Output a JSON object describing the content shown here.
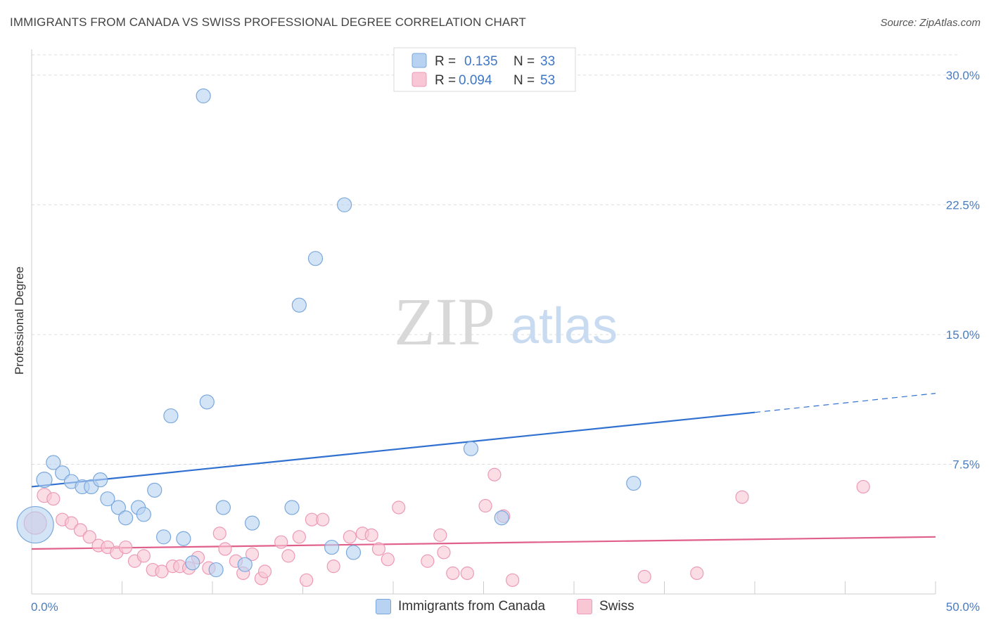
{
  "title": "IMMIGRANTS FROM CANADA VS SWISS PROFESSIONAL DEGREE CORRELATION CHART",
  "source": "Source: ZipAtlas.com",
  "watermark": {
    "zip": "ZIP",
    "atlas": "atlas"
  },
  "colors": {
    "canada_fill": "#b8d2f2",
    "canada_stroke": "#7aa8dc",
    "canada_line": "#2f70d0",
    "swiss_fill": "#f9c6d6",
    "swiss_stroke": "#ec9ab6",
    "swiss_line": "#e0608a",
    "tick_text": "#4a7cc0"
  },
  "legend": {
    "rows": [
      {
        "r_label": "R =",
        "r_value": "0.135",
        "n_label": "N =",
        "n_value": "33"
      },
      {
        "r_label": "R =",
        "r_value": "0.094",
        "n_label": "N =",
        "n_value": "53"
      }
    ]
  },
  "bottom_legend": [
    "Immigrants from Canada",
    "Swiss"
  ],
  "chart_data": {
    "type": "scatter",
    "ylabel": "Professional Degree",
    "xlim": [
      0,
      50
    ],
    "ylim": [
      0,
      31.5
    ],
    "x_tick_labels": [
      "0.0%",
      "50.0%"
    ],
    "y_ticks": [
      7.5,
      15.0,
      22.5,
      30.0
    ],
    "y_tick_labels": [
      "7.5%",
      "15.0%",
      "22.5%",
      "30.0%"
    ],
    "grid": "horizontal-dashed",
    "series": [
      {
        "name": "Immigrants from Canada",
        "trend": {
          "x0": 0,
          "y0": 6.2,
          "x1": 40,
          "y1": 10.5,
          "x_dash_end": 50,
          "y_dash_end": 11.6
        },
        "points": [
          [
            0.2,
            4.0,
            26
          ],
          [
            0.7,
            6.6,
            11
          ],
          [
            1.2,
            7.6,
            10
          ],
          [
            1.7,
            7.0,
            10
          ],
          [
            2.2,
            6.5,
            10
          ],
          [
            2.8,
            6.2,
            10
          ],
          [
            3.3,
            6.2,
            10
          ],
          [
            3.8,
            6.6,
            10
          ],
          [
            4.2,
            5.5,
            10
          ],
          [
            4.8,
            5.0,
            10
          ],
          [
            5.2,
            4.4,
            10
          ],
          [
            5.9,
            5.0,
            10
          ],
          [
            6.2,
            4.6,
            10
          ],
          [
            6.8,
            6.0,
            10
          ],
          [
            7.3,
            3.3,
            10
          ],
          [
            7.7,
            10.3,
            10
          ],
          [
            8.4,
            3.2,
            10
          ],
          [
            8.9,
            1.8,
            10
          ],
          [
            9.5,
            28.8,
            10
          ],
          [
            9.7,
            11.1,
            10
          ],
          [
            10.2,
            1.4,
            10
          ],
          [
            10.6,
            5.0,
            10
          ],
          [
            11.8,
            1.7,
            10
          ],
          [
            12.2,
            4.1,
            10
          ],
          [
            14.4,
            5.0,
            10
          ],
          [
            14.8,
            16.7,
            10
          ],
          [
            15.7,
            19.4,
            10
          ],
          [
            16.6,
            2.7,
            10
          ],
          [
            17.3,
            22.5,
            10
          ],
          [
            17.8,
            2.4,
            10
          ],
          [
            24.3,
            8.4,
            10
          ],
          [
            26.0,
            4.4,
            10
          ],
          [
            33.3,
            6.4,
            10
          ]
        ]
      },
      {
        "name": "Swiss",
        "trend": {
          "x0": 0,
          "y0": 2.6,
          "x1": 50,
          "y1": 3.3
        },
        "points": [
          [
            0.2,
            4.1,
            16
          ],
          [
            0.7,
            5.7,
            10
          ],
          [
            1.2,
            5.5,
            9
          ],
          [
            1.7,
            4.3,
            9
          ],
          [
            2.2,
            4.1,
            9
          ],
          [
            2.7,
            3.7,
            9
          ],
          [
            3.2,
            3.3,
            9
          ],
          [
            3.7,
            2.8,
            9
          ],
          [
            4.2,
            2.7,
            9
          ],
          [
            4.7,
            2.4,
            9
          ],
          [
            5.2,
            2.7,
            9
          ],
          [
            5.7,
            1.9,
            9
          ],
          [
            6.2,
            2.2,
            9
          ],
          [
            6.7,
            1.4,
            9
          ],
          [
            7.2,
            1.3,
            9
          ],
          [
            7.8,
            1.6,
            9
          ],
          [
            8.2,
            1.6,
            9
          ],
          [
            8.7,
            1.5,
            9
          ],
          [
            9.2,
            2.1,
            9
          ],
          [
            9.8,
            1.5,
            9
          ],
          [
            10.4,
            3.5,
            9
          ],
          [
            10.7,
            2.6,
            9
          ],
          [
            11.3,
            1.9,
            9
          ],
          [
            11.7,
            1.2,
            9
          ],
          [
            12.2,
            2.3,
            9
          ],
          [
            12.7,
            0.9,
            9
          ],
          [
            12.9,
            1.3,
            9
          ],
          [
            13.8,
            3.0,
            9
          ],
          [
            14.2,
            2.2,
            9
          ],
          [
            14.8,
            3.3,
            9
          ],
          [
            15.2,
            0.8,
            9
          ],
          [
            15.5,
            4.3,
            9
          ],
          [
            16.1,
            4.3,
            9
          ],
          [
            16.7,
            1.6,
            9
          ],
          [
            17.6,
            3.3,
            9
          ],
          [
            18.3,
            3.5,
            9
          ],
          [
            18.8,
            3.4,
            9
          ],
          [
            19.2,
            2.6,
            9
          ],
          [
            19.7,
            2.0,
            9
          ],
          [
            20.3,
            5.0,
            9
          ],
          [
            21.9,
            1.9,
            9
          ],
          [
            22.6,
            3.4,
            9
          ],
          [
            22.8,
            2.4,
            9
          ],
          [
            23.3,
            1.2,
            9
          ],
          [
            24.1,
            1.2,
            9
          ],
          [
            25.1,
            5.1,
            9
          ],
          [
            25.6,
            6.9,
            9
          ],
          [
            26.1,
            4.5,
            9
          ],
          [
            26.6,
            0.8,
            9
          ],
          [
            33.9,
            1.0,
            9
          ],
          [
            36.8,
            1.2,
            9
          ],
          [
            39.3,
            5.6,
            9
          ],
          [
            46.0,
            6.2,
            9
          ]
        ]
      }
    ]
  }
}
